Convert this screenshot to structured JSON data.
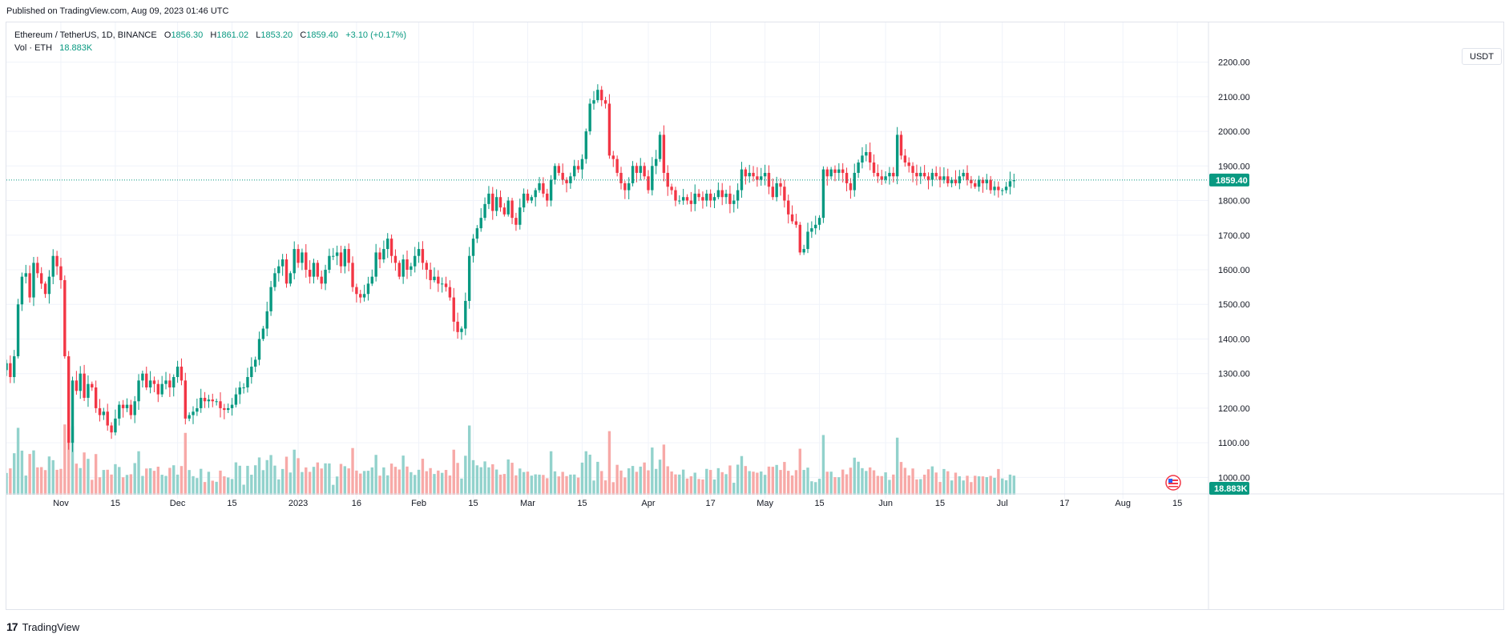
{
  "header": {
    "published": "Published on TradingView.com, Aug 09, 2023 01:46 UTC"
  },
  "legend": {
    "symbol": "Ethereum / TetherUS, 1D, BINANCE",
    "o_label": "O",
    "o_value": "1856.30",
    "h_label": "H",
    "h_value": "1861.02",
    "l_label": "L",
    "l_value": "1853.20",
    "c_label": "C",
    "c_value": "1859.40",
    "change": "+3.10 (+0.17%)",
    "vol_label": "Vol · ETH",
    "vol_value": "18.883K"
  },
  "currency_button": "USDT",
  "footer": {
    "brand": "TradingView",
    "logo": "17"
  },
  "colors": {
    "up": "#089981",
    "down": "#f23645",
    "up_vol": "#92d2cc",
    "down_vol": "#f7a9a7",
    "grid": "#f0f3fa",
    "axis_text": "#131722"
  },
  "chart_data": {
    "type": "candlestick",
    "symbol": "Ethereum / TetherUS",
    "interval": "1D",
    "exchange": "BINANCE",
    "x_range": [
      "2022-10-18",
      "2023-08-23"
    ],
    "ylim": [
      950,
      2250
    ],
    "y_ticks": [
      "2200.00",
      "2100.00",
      "2000.00",
      "1900.00",
      "1800.00",
      "1700.00",
      "1600.00",
      "1500.00",
      "1400.00",
      "1300.00",
      "1200.00",
      "1100.00",
      "1000.00"
    ],
    "x_ticks": [
      {
        "date": "2022-11-01",
        "label": "Nov"
      },
      {
        "date": "2022-11-15",
        "label": "15"
      },
      {
        "date": "2022-12-01",
        "label": "Dec"
      },
      {
        "date": "2022-12-15",
        "label": "15"
      },
      {
        "date": "2023-01-01",
        "label": "2023"
      },
      {
        "date": "2023-01-16",
        "label": "16"
      },
      {
        "date": "2023-02-01",
        "label": "Feb"
      },
      {
        "date": "2023-02-15",
        "label": "15"
      },
      {
        "date": "2023-03-01",
        "label": "Mar"
      },
      {
        "date": "2023-03-15",
        "label": "15"
      },
      {
        "date": "2023-04-01",
        "label": "Apr"
      },
      {
        "date": "2023-04-17",
        "label": "17"
      },
      {
        "date": "2023-05-01",
        "label": "May"
      },
      {
        "date": "2023-05-15",
        "label": "15"
      },
      {
        "date": "2023-06-01",
        "label": "Jun"
      },
      {
        "date": "2023-06-15",
        "label": "15"
      },
      {
        "date": "2023-07-01",
        "label": "Jul"
      },
      {
        "date": "2023-07-17",
        "label": "17"
      },
      {
        "date": "2023-08-01",
        "label": "Aug"
      },
      {
        "date": "2023-08-15",
        "label": "15"
      }
    ],
    "price_tag": "1859.40",
    "volume_tag": "18.883K",
    "last_price": 1859.4,
    "start_date": "2022-10-18",
    "closes": [
      1330,
      1290,
      1350,
      1500,
      1580,
      1590,
      1520,
      1620,
      1590,
      1560,
      1530,
      1580,
      1640,
      1610,
      1570,
      1350,
      1100,
      1280,
      1250,
      1300,
      1230,
      1270,
      1260,
      1200,
      1180,
      1190,
      1150,
      1130,
      1170,
      1210,
      1200,
      1210,
      1180,
      1220,
      1280,
      1300,
      1260,
      1280,
      1270,
      1240,
      1270,
      1280,
      1260,
      1290,
      1320,
      1280,
      1170,
      1180,
      1190,
      1200,
      1230,
      1220,
      1225,
      1220,
      1220,
      1200,
      1195,
      1200,
      1210,
      1240,
      1260,
      1260,
      1290,
      1320,
      1340,
      1400,
      1430,
      1480,
      1550,
      1590,
      1610,
      1630,
      1560,
      1590,
      1660,
      1620,
      1650,
      1600,
      1580,
      1620,
      1580,
      1560,
      1600,
      1640,
      1640,
      1650,
      1610,
      1660,
      1620,
      1550,
      1530,
      1520,
      1530,
      1560,
      1580,
      1650,
      1630,
      1660,
      1690,
      1640,
      1620,
      1580,
      1630,
      1600,
      1610,
      1640,
      1660,
      1620,
      1600,
      1570,
      1580,
      1560,
      1560,
      1550,
      1520,
      1450,
      1420,
      1430,
      1510,
      1640,
      1690,
      1720,
      1750,
      1790,
      1820,
      1770,
      1810,
      1780,
      1760,
      1800,
      1750,
      1730,
      1780,
      1820,
      1800,
      1810,
      1830,
      1850,
      1820,
      1800,
      1860,
      1900,
      1880,
      1860,
      1850,
      1870,
      1900,
      1890,
      1920,
      2000,
      2080,
      2090,
      2120,
      2090,
      2080,
      1930,
      1920,
      1880,
      1850,
      1830,
      1850,
      1900,
      1880,
      1900,
      1870,
      1830,
      1900,
      1920,
      1990,
      1880,
      1840,
      1830,
      1800,
      1800,
      1810,
      1800,
      1790,
      1820,
      1810,
      1800,
      1820,
      1800,
      1810,
      1830,
      1810,
      1820,
      1790,
      1800,
      1830,
      1890,
      1870,
      1880,
      1870,
      1860,
      1870,
      1880,
      1840,
      1810,
      1850,
      1840,
      1800,
      1760,
      1740,
      1730,
      1650,
      1660,
      1710,
      1720,
      1730,
      1750,
      1890,
      1870,
      1890,
      1880,
      1890,
      1880,
      1850,
      1830,
      1880,
      1910,
      1930,
      1940,
      1910,
      1880,
      1870,
      1860,
      1870,
      1880,
      1870,
      1990,
      1930,
      1910,
      1900,
      1880,
      1870,
      1880,
      1870,
      1860,
      1880,
      1870,
      1860,
      1870,
      1850,
      1860,
      1850,
      1870,
      1880,
      1860,
      1850,
      1840,
      1860,
      1850,
      1860,
      1830,
      1840,
      1830,
      1830,
      1840,
      1856,
      1859
    ]
  }
}
